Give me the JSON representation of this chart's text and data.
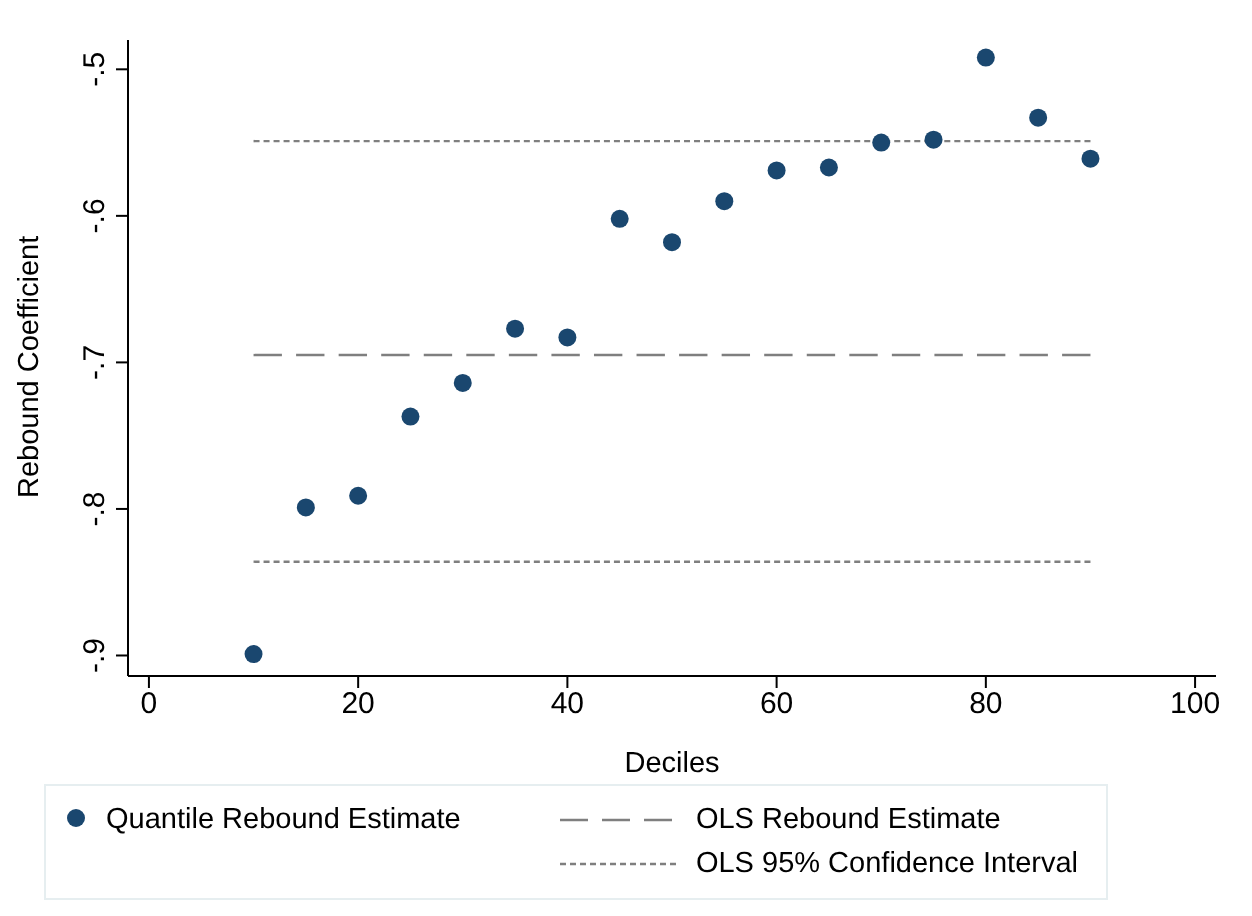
{
  "chart_data": {
    "type": "scatter",
    "xlabel": "Deciles",
    "ylabel": "Rebound Coefficient",
    "xlim": [
      -2,
      102
    ],
    "xticks": [
      0,
      20,
      40,
      60,
      80,
      100
    ],
    "ylim": [
      -0.914,
      -0.48
    ],
    "yticks": [
      {
        "value": -0.9,
        "label": "-.9"
      },
      {
        "value": -0.8,
        "label": "-.8"
      },
      {
        "value": -0.7,
        "label": "-.7"
      },
      {
        "value": -0.6,
        "label": "-.6"
      },
      {
        "value": -0.5,
        "label": "-.5"
      }
    ],
    "grid": false,
    "legend": "bottom",
    "series": [
      {
        "name": "Quantile Rebound Estimate",
        "color": "#1a476f",
        "marker": "circle",
        "x": [
          10,
          15,
          20,
          25,
          30,
          35,
          40,
          45,
          50,
          55,
          60,
          65,
          70,
          75,
          80,
          85,
          90
        ],
        "values": [
          -0.899,
          -0.799,
          -0.791,
          -0.737,
          -0.714,
          -0.677,
          -0.683,
          -0.602,
          -0.618,
          -0.59,
          -0.569,
          -0.567,
          -0.55,
          -0.548,
          -0.492,
          -0.533,
          -0.561
        ]
      },
      {
        "name": "OLS Rebound Estimate",
        "type": "line",
        "color": "#7f7f7f",
        "marker": "none",
        "line_style": "dashed",
        "x": [
          10,
          90
        ],
        "values": [
          -0.695,
          -0.695
        ]
      },
      {
        "name": "OLS 95% Confidence Interval",
        "type": "line",
        "color": "#7f7f7f",
        "marker": "none",
        "line_style": "dotted",
        "x": [
          10,
          90
        ],
        "values": [
          -0.549,
          -0.549
        ]
      },
      {
        "type": "line",
        "color": "#7f7f7f",
        "marker": "none",
        "line_style": "dotted",
        "x": [
          10,
          90
        ],
        "values": [
          -0.836,
          -0.836
        ]
      }
    ]
  }
}
